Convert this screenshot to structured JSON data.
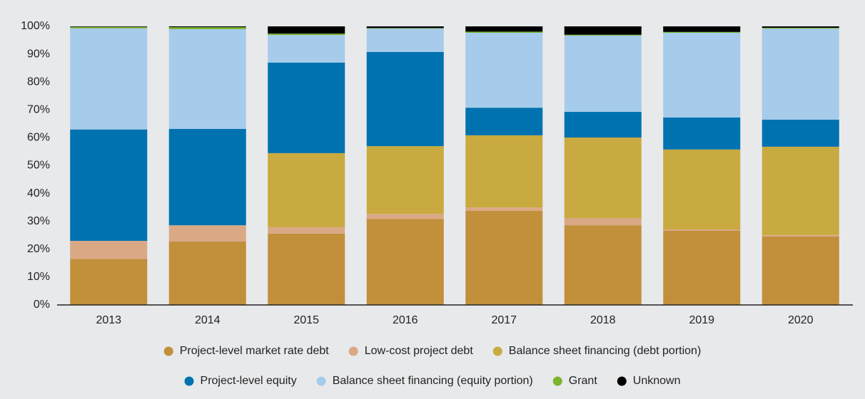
{
  "chart_data": {
    "type": "stacked_bar",
    "categories": [
      "2013",
      "2014",
      "2015",
      "2016",
      "2017",
      "2018",
      "2019",
      "2020"
    ],
    "series": [
      {
        "name": "Project-level market rate debt",
        "color": "#c28f3b",
        "values": [
          16.5,
          22.8,
          25.6,
          30.9,
          33.8,
          28.6,
          26.6,
          24.6
        ]
      },
      {
        "name": "Low-cost project debt",
        "color": "#d9a985",
        "values": [
          6.5,
          5.8,
          2.3,
          1.8,
          1.2,
          2.6,
          0.5,
          0.5
        ]
      },
      {
        "name": "Balance sheet financing (debt portion)",
        "color": "#c8aa40",
        "values": [
          0,
          0,
          26.6,
          24.3,
          25.9,
          28.9,
          28.7,
          31.7
        ]
      },
      {
        "name": "Project-level equity",
        "color": "#0072b0",
        "values": [
          40.0,
          34.6,
          32.5,
          33.8,
          9.9,
          9.2,
          11.5,
          9.7
        ]
      },
      {
        "name": "Balance sheet financing (equity portion)",
        "color": "#a7cbea",
        "values": [
          36.3,
          35.8,
          9.9,
          8.4,
          26.9,
          27.4,
          30.4,
          32.7
        ]
      },
      {
        "name": "Grant",
        "color": "#7ab52c",
        "values": [
          0.5,
          0.7,
          0.5,
          0.2,
          0.4,
          0.3,
          0.3,
          0.3
        ]
      },
      {
        "name": "Unknown",
        "color": "#000000",
        "values": [
          0.2,
          0.3,
          2.6,
          0.6,
          1.9,
          3.0,
          2.0,
          0.5
        ]
      }
    ],
    "ylim": [
      0,
      100
    ],
    "yticks": [
      {
        "value": 0,
        "label": "0%"
      },
      {
        "value": 10,
        "label": "10%"
      },
      {
        "value": 20,
        "label": "20%"
      },
      {
        "value": 30,
        "label": "30%"
      },
      {
        "value": 40,
        "label": "40%"
      },
      {
        "value": 50,
        "label": "50%"
      },
      {
        "value": 60,
        "label": "60%"
      },
      {
        "value": 70,
        "label": "70%"
      },
      {
        "value": 80,
        "label": "80%"
      },
      {
        "value": 90,
        "label": "90%"
      },
      {
        "value": 100,
        "label": "100%"
      }
    ],
    "legend": "bottom"
  }
}
